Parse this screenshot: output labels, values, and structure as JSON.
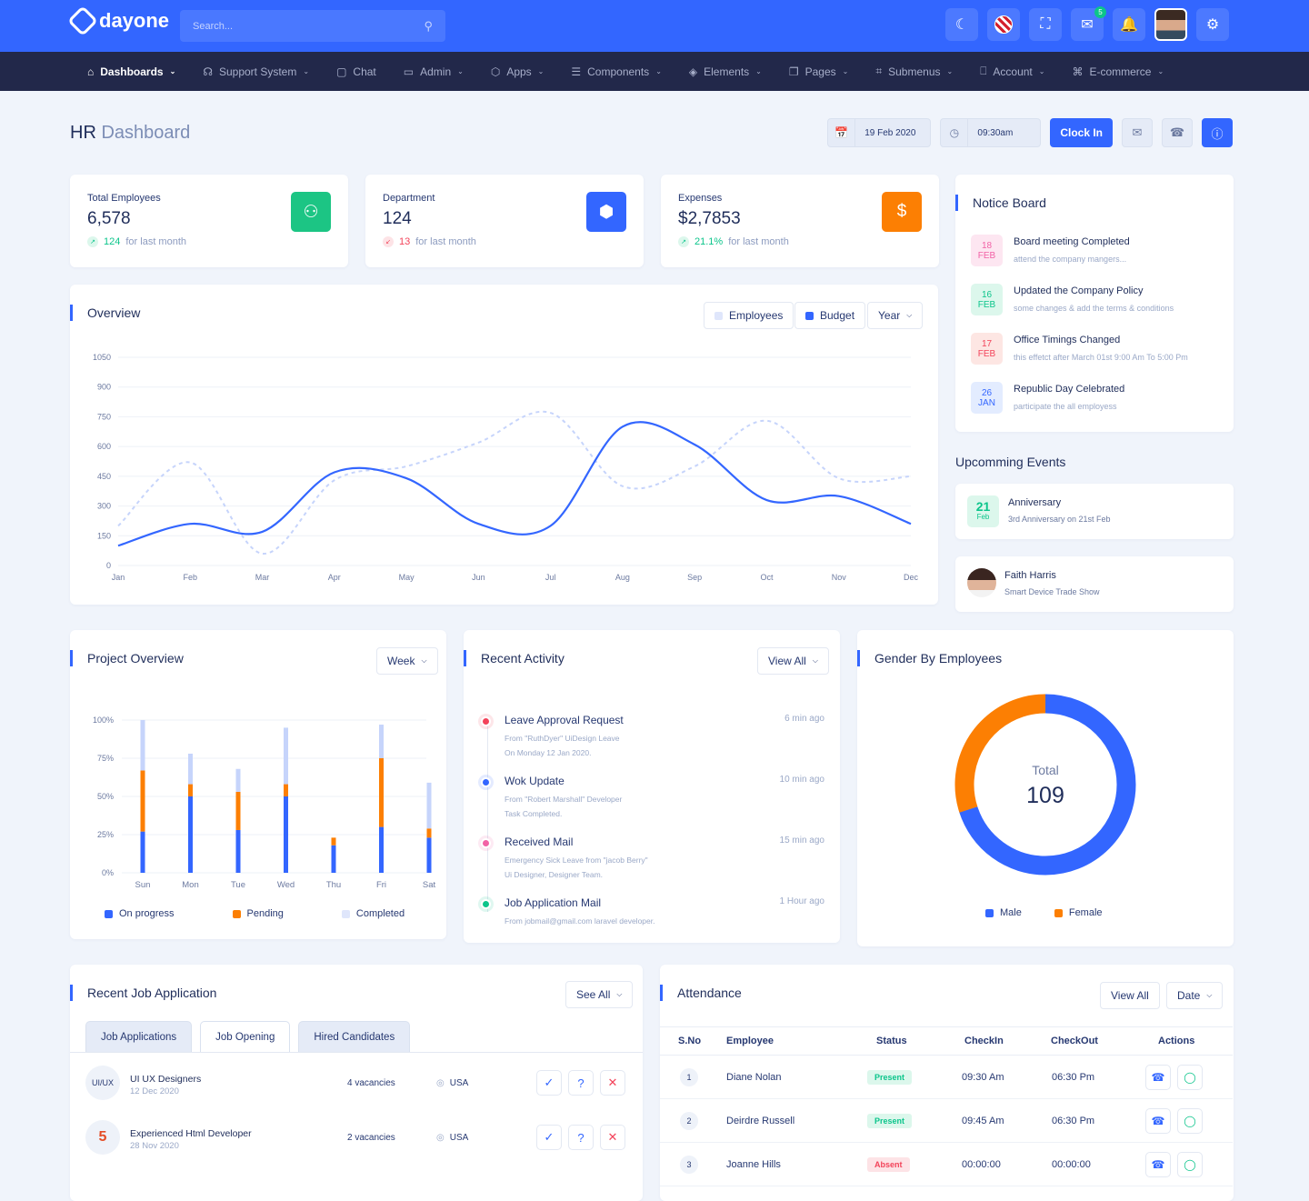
{
  "app": {
    "brand": "dayone",
    "search_placeholder": "Search...",
    "mail_badge": "5"
  },
  "nav": [
    {
      "label": "Dashboards",
      "icon": "home-icon",
      "active": true
    },
    {
      "label": "Support System",
      "icon": "headphones-icon"
    },
    {
      "label": "Chat",
      "icon": "chat-icon"
    },
    {
      "label": "Admin",
      "icon": "monitor-icon"
    },
    {
      "label": "Apps",
      "icon": "apps-icon"
    },
    {
      "label": "Components",
      "icon": "components-icon"
    },
    {
      "label": "Elements",
      "icon": "layers-icon"
    },
    {
      "label": "Pages",
      "icon": "pages-icon"
    },
    {
      "label": "Submenus",
      "icon": "submenus-icon"
    },
    {
      "label": "Account",
      "icon": "lock-icon"
    },
    {
      "label": "E-commerce",
      "icon": "cart-icon"
    }
  ],
  "page": {
    "title": "HR",
    "subtitle": "Dashboard",
    "date": "19 Feb 2020",
    "time": "09:30am",
    "clock_in": "Clock In"
  },
  "stats": [
    {
      "label": "Total Employees",
      "value": "6,578",
      "delta": "124",
      "foot": "for last month",
      "dir": "up",
      "color": "#1cc584",
      "icon": "users-icon"
    },
    {
      "label": "Department",
      "value": "124",
      "delta": "13",
      "foot": "for last month",
      "dir": "down",
      "color": "#3366ff",
      "icon": "cube-icon"
    },
    {
      "label": "Expenses",
      "value": "$2,7853",
      "delta": "21.1%",
      "foot": "for last month",
      "dir": "up",
      "color": "#fc7f03",
      "icon": "dollar-icon"
    }
  ],
  "overview": {
    "title": "Overview",
    "legend_employees": "Employees",
    "legend_budget": "Budget",
    "period": "Year"
  },
  "chart_data": {
    "type": "line",
    "x": [
      "Jan",
      "Feb",
      "Mar",
      "Apr",
      "May",
      "Jun",
      "Jul",
      "Aug",
      "Sep",
      "Oct",
      "Nov",
      "Dec"
    ],
    "yticks": [
      0,
      150,
      300,
      450,
      600,
      750,
      900,
      1050
    ],
    "ylim": [
      0,
      1050
    ],
    "series": [
      {
        "name": "Employees",
        "style": "dashed",
        "color": "#c6d4fb",
        "values": [
          200,
          520,
          60,
          430,
          500,
          620,
          770,
          400,
          500,
          730,
          440,
          450
        ]
      },
      {
        "name": "Budget",
        "style": "solid",
        "color": "#3366ff",
        "values": [
          100,
          210,
          170,
          470,
          440,
          210,
          200,
          700,
          610,
          330,
          350,
          210
        ]
      }
    ]
  },
  "notice": {
    "title": "Notice Board",
    "items": [
      {
        "day": "18",
        "mon": "FEB",
        "title": "Board meeting Completed",
        "sub": "attend the company mangers...",
        "bg": "#fde6f1",
        "fg": "#f262a6"
      },
      {
        "day": "16",
        "mon": "FEB",
        "title": "Updated the Company Policy",
        "sub": "some changes & add the terms & conditions",
        "bg": "#dcf7ec",
        "fg": "#0cc58b"
      },
      {
        "day": "17",
        "mon": "FEB",
        "title": "Office Timings Changed",
        "sub": "this effetct after March 01st 9:00 Am To 5:00 Pm",
        "bg": "#fde6e3",
        "fg": "#f3435a"
      },
      {
        "day": "26",
        "mon": "JAN",
        "title": "Republic Day Celebrated",
        "sub": "participate the all employess",
        "bg": "#e3ecff",
        "fg": "#3366ff"
      }
    ]
  },
  "events": {
    "title": "Upcomming Events",
    "anniversary": {
      "day": "21",
      "mon": "Feb",
      "title": "Anniversary",
      "sub": "3rd Anniversary on 21st Feb"
    },
    "person": {
      "name": "Faith Harris",
      "sub": "Smart Device Trade Show"
    }
  },
  "project": {
    "title": "Project Overview",
    "period": "Week",
    "legend": [
      "On progress",
      "Pending",
      "Completed"
    ],
    "yticks": [
      "100%",
      "75%",
      "50%",
      "25%",
      "0%"
    ],
    "days": [
      "Sun",
      "Mon",
      "Tue",
      "Wed",
      "Thu",
      "Fri",
      "Sat"
    ],
    "progress": [
      27,
      50,
      28,
      50,
      18,
      30,
      23
    ],
    "pending": [
      40,
      8,
      25,
      8,
      5,
      45,
      6
    ],
    "completed": [
      33,
      20,
      15,
      37,
      0,
      22,
      30
    ]
  },
  "activity": {
    "title": "Recent Activity",
    "view_all": "View All",
    "items": [
      {
        "title": "Leave Approval Request",
        "line1": "From \"RuthDyer\" UiDesign Leave",
        "line2": "On Monday 12 Jan 2020.",
        "time": "6 min ago",
        "color": "#f3435a"
      },
      {
        "title": "Wok Update",
        "line1": "From \"Robert Marshall\" Developer",
        "line2": "Task Completed.",
        "time": "10 min ago",
        "color": "#3366ff"
      },
      {
        "title": "Received Mail",
        "line1": "Emergency Sick Leave from \"jacob Berry\"",
        "line2": "Ui Designer, Designer Team.",
        "time": "15 min ago",
        "color": "#f262a6"
      },
      {
        "title": "Job Application Mail",
        "line1": "From jobmail@gmail.com laravel developer.",
        "line2": "",
        "time": "1 Hour ago",
        "color": "#0cc58b"
      }
    ]
  },
  "gender": {
    "title": "Gender By Employees",
    "total_label": "Total",
    "total": "109",
    "male_label": "Male",
    "female_label": "Female",
    "male": 70,
    "female": 30,
    "male_color": "#3366ff",
    "female_color": "#fc7f03"
  },
  "jobs": {
    "title": "Recent Job Application",
    "see_all": "See All",
    "tabs": [
      "Job Applications",
      "Job Opening",
      "Hired Candidates"
    ],
    "rows": [
      {
        "logo": "UI/UX",
        "title": "UI UX Designers",
        "date": "12 Dec 2020",
        "vacancies": "4 vacancies",
        "location": "USA"
      },
      {
        "logo": "html5",
        "title": "Experienced Html Developer",
        "date": "28 Nov 2020",
        "vacancies": "2 vacancies",
        "location": "USA"
      }
    ]
  },
  "attendance": {
    "title": "Attendance",
    "view_all": "View All",
    "date": "Date",
    "headers": [
      "S.No",
      "Employee",
      "Status",
      "CheckIn",
      "CheckOut",
      "Actions"
    ],
    "rows": [
      {
        "no": "1",
        "name": "Diane Nolan",
        "status": "Present",
        "in": "09:30 Am",
        "out": "06:30 Pm"
      },
      {
        "no": "2",
        "name": "Deirdre Russell",
        "status": "Present",
        "in": "09:45 Am",
        "out": "06:30 Pm"
      },
      {
        "no": "3",
        "name": "Joanne Hills",
        "status": "Absent",
        "in": "00:00:00",
        "out": "00:00:00"
      }
    ]
  }
}
